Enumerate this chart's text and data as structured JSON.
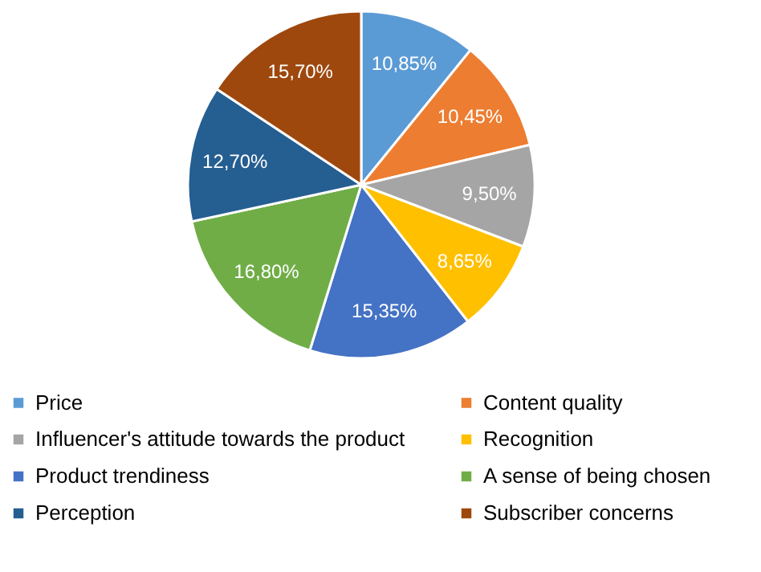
{
  "chart_data": {
    "type": "pie",
    "categories": [
      "Price",
      "Content quality",
      "Influencer's attitude towards the product",
      "Recognition",
      "Product trendiness",
      "A sense of being chosen",
      "Perception",
      "Subscriber concerns"
    ],
    "values": [
      10.85,
      10.45,
      9.5,
      8.65,
      15.35,
      16.8,
      12.7,
      15.7
    ],
    "value_labels": [
      "10,85%",
      "10,45%",
      "9,50%",
      "8,65%",
      "15,35%",
      "16,80%",
      "12,70%",
      "15,70%"
    ],
    "colors": [
      "#5b9bd5",
      "#ed7d31",
      "#a5a5a5",
      "#ffc000",
      "#4472c4",
      "#70ad47",
      "#255e91",
      "#9e480e"
    ],
    "legend": "bottom"
  }
}
